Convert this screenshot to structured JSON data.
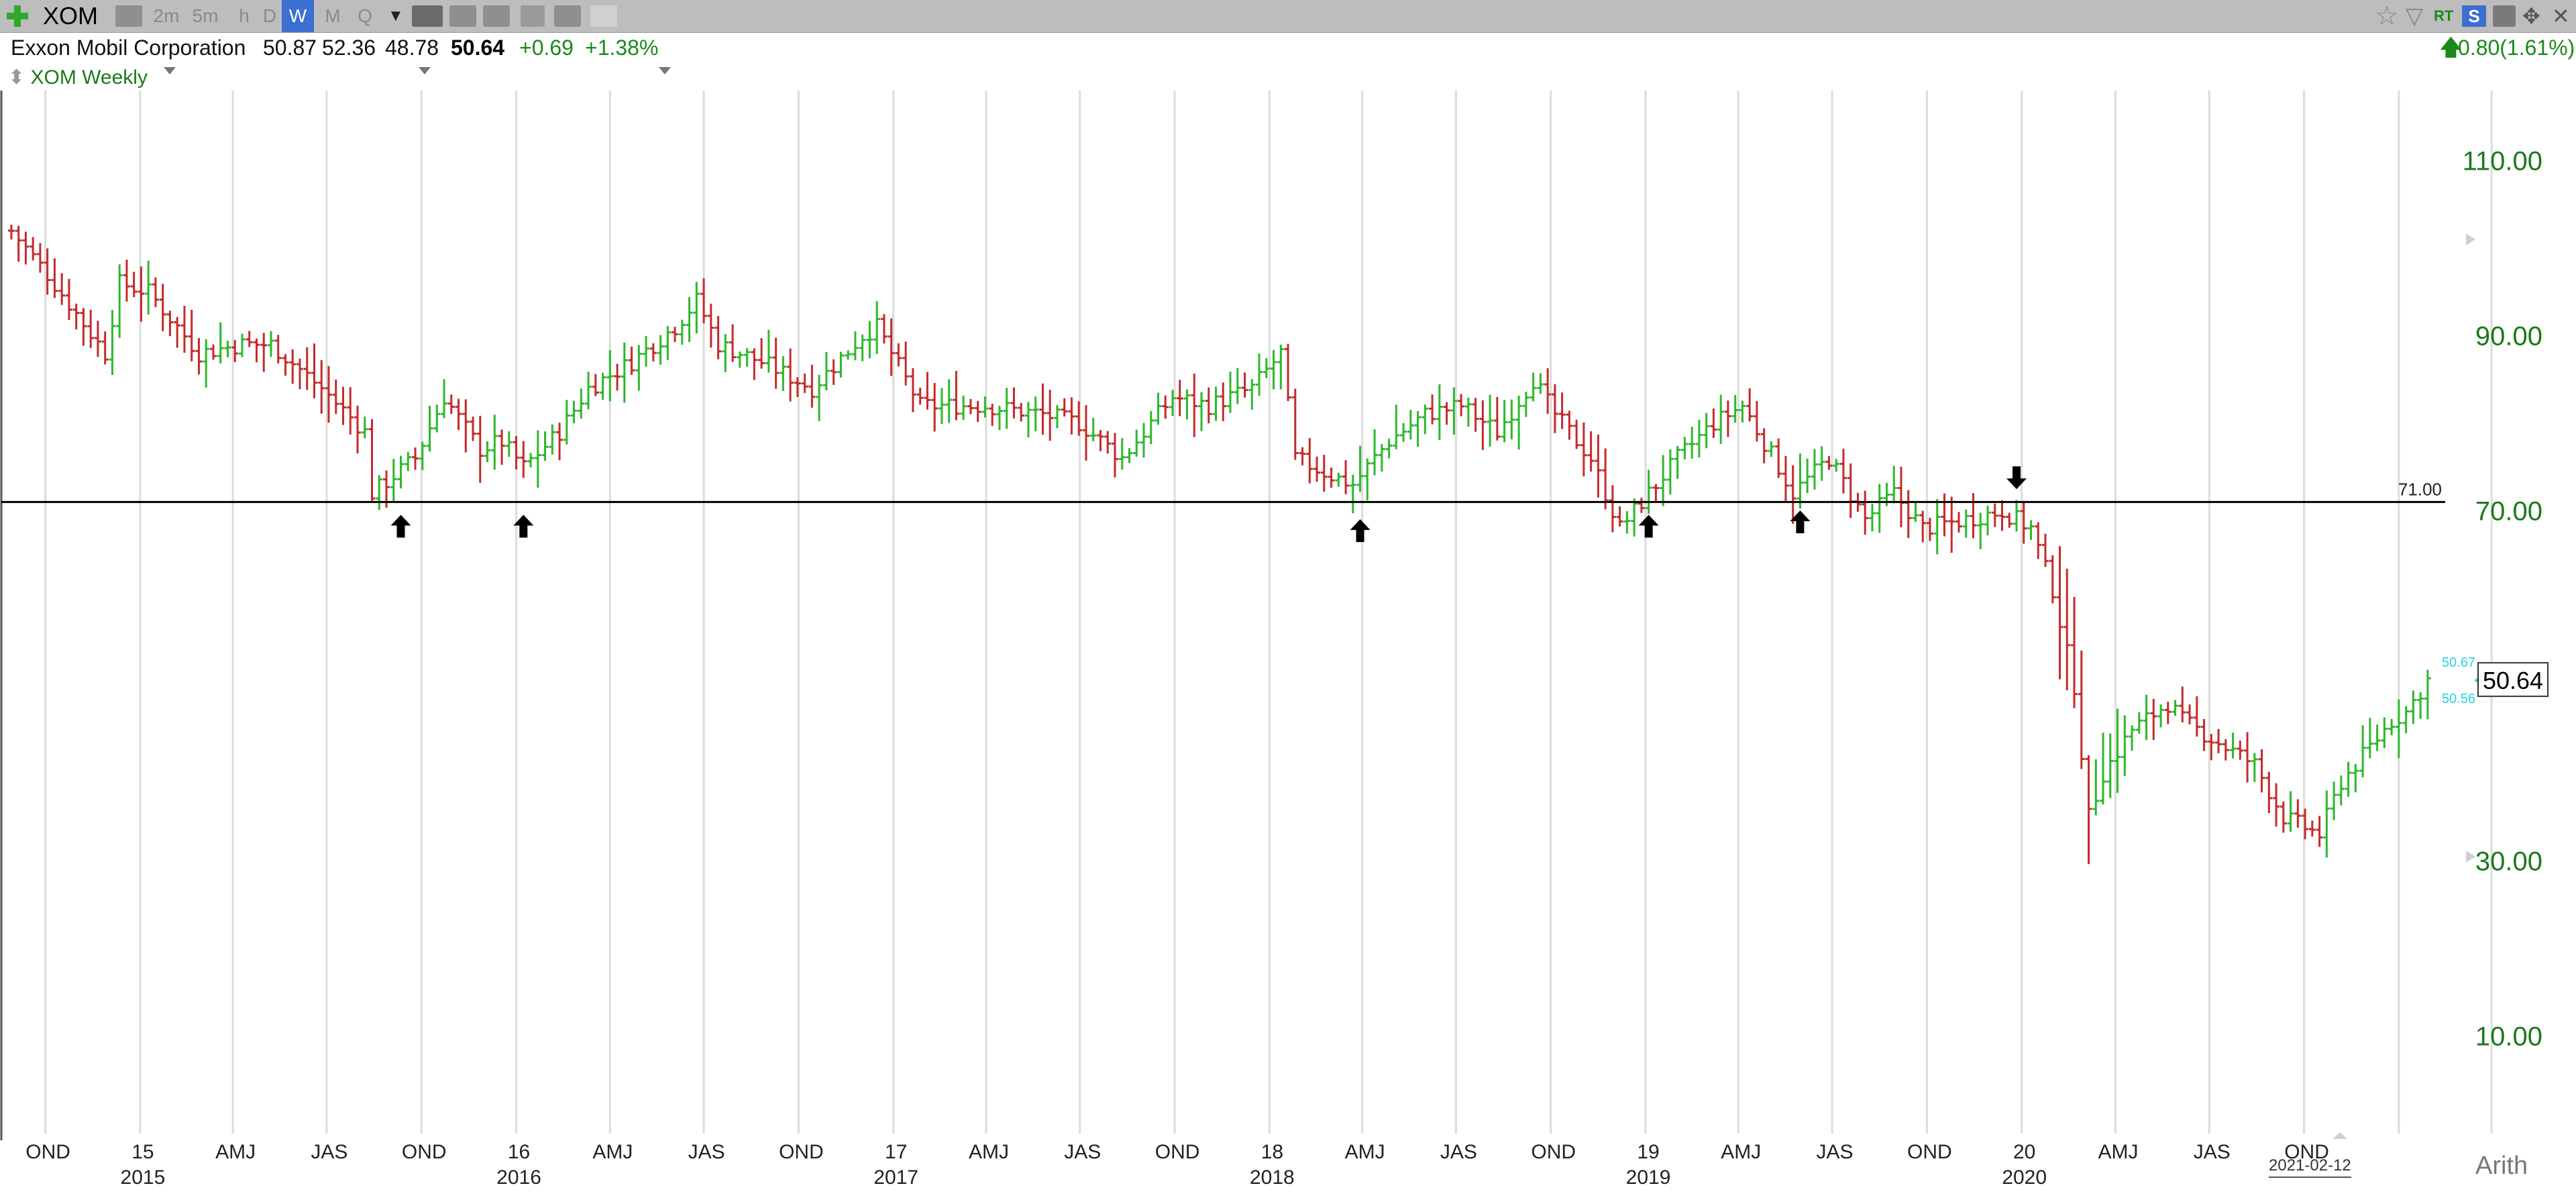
{
  "toolbar": {
    "symbol": "XOM",
    "timeframes": [
      "2m",
      "5m",
      "h",
      "D",
      "W",
      "M",
      "Q"
    ],
    "selected_timeframe": "W",
    "right_icons": [
      "star-icon",
      "filter-icon",
      "rt-icon",
      "s-icon",
      "save-icon",
      "move-icon",
      "close-icon"
    ],
    "rt_label": "RT",
    "s_label": "S"
  },
  "quote": {
    "name": "Exxon Mobil Corporation",
    "open": "50.87",
    "high": "52.36",
    "low": "48.78",
    "last": "50.64",
    "change": "+0.69",
    "change_pct": "+1.38%",
    "after_change": "0.80(1.61%)",
    "up_color": "#1a8a1a",
    "down_color": "#c0392b"
  },
  "chart_label": "XOM Weekly",
  "scale_mode": "Arith",
  "current_date": "2021-02-12",
  "chart_data": {
    "type": "bar",
    "subtype": "ohlc-weekly",
    "ylim": [
      0,
      118
    ],
    "y_ticks": [
      10,
      30,
      50,
      70,
      90,
      110
    ],
    "y_tick_labels": [
      "10.00",
      "30.00",
      "",
      "70.00",
      "90.00",
      "110.00"
    ],
    "last_price": "50.64",
    "bid_ask": [
      "50.67",
      "50.56"
    ],
    "horizontal_line": {
      "value": 71.0,
      "label": "71.00"
    },
    "grid": true,
    "x_axis": {
      "start": "2014-09",
      "end": "2021-03",
      "quarter_labels": [
        {
          "date": "2014-10-15",
          "label": "OND"
        },
        {
          "date": "2015-01-15",
          "label": "15"
        },
        {
          "date": "2015-04-15",
          "label": "AMJ"
        },
        {
          "date": "2015-07-15",
          "label": "JAS"
        },
        {
          "date": "2015-10-15",
          "label": "OND"
        },
        {
          "date": "2016-01-15",
          "label": "16"
        },
        {
          "date": "2016-04-15",
          "label": "AMJ"
        },
        {
          "date": "2016-07-15",
          "label": "JAS"
        },
        {
          "date": "2016-10-15",
          "label": "OND"
        },
        {
          "date": "2017-01-15",
          "label": "17"
        },
        {
          "date": "2017-04-15",
          "label": "AMJ"
        },
        {
          "date": "2017-07-15",
          "label": "JAS"
        },
        {
          "date": "2017-10-15",
          "label": "OND"
        },
        {
          "date": "2018-01-15",
          "label": "18"
        },
        {
          "date": "2018-04-15",
          "label": "AMJ"
        },
        {
          "date": "2018-07-15",
          "label": "JAS"
        },
        {
          "date": "2018-10-15",
          "label": "OND"
        },
        {
          "date": "2019-01-15",
          "label": "19"
        },
        {
          "date": "2019-04-15",
          "label": "AMJ"
        },
        {
          "date": "2019-07-15",
          "label": "JAS"
        },
        {
          "date": "2019-10-15",
          "label": "OND"
        },
        {
          "date": "2020-01-15",
          "label": "20"
        },
        {
          "date": "2020-04-15",
          "label": "AMJ"
        },
        {
          "date": "2020-07-15",
          "label": "JAS"
        },
        {
          "date": "2020-10-15",
          "label": "OND"
        }
      ],
      "year_labels": [
        {
          "date": "2015-01-15",
          "label": "2015"
        },
        {
          "date": "2016-01-15",
          "label": "2016"
        },
        {
          "date": "2017-01-15",
          "label": "2017"
        },
        {
          "date": "2018-01-15",
          "label": "2018"
        },
        {
          "date": "2019-01-15",
          "label": "2019"
        },
        {
          "date": "2020-01-15",
          "label": "2020"
        }
      ]
    },
    "price_path": [
      [
        "2014-09-12",
        102
      ],
      [
        "2014-10-17",
        97
      ],
      [
        "2014-12-12",
        88
      ],
      [
        "2014-12-26",
        96
      ],
      [
        "2015-01-23",
        95
      ],
      [
        "2015-03-13",
        88
      ],
      [
        "2015-04-24",
        89
      ],
      [
        "2015-05-22",
        89
      ],
      [
        "2015-07-10",
        84
      ],
      [
        "2015-08-21",
        79
      ],
      [
        "2015-08-28",
        72
      ],
      [
        "2015-09-18",
        74
      ],
      [
        "2015-10-09",
        76
      ],
      [
        "2015-11-06",
        83
      ],
      [
        "2015-12-11",
        77
      ],
      [
        "2015-12-31",
        78
      ],
      [
        "2016-01-22",
        75
      ],
      [
        "2016-02-26",
        79
      ],
      [
        "2016-03-25",
        84
      ],
      [
        "2016-05-06",
        87
      ],
      [
        "2016-06-17",
        91
      ],
      [
        "2016-07-08",
        94
      ],
      [
        "2016-07-29",
        89
      ],
      [
        "2016-09-09",
        87
      ],
      [
        "2016-10-28",
        84
      ],
      [
        "2016-12-16",
        90
      ],
      [
        "2016-12-30",
        91
      ],
      [
        "2017-02-10",
        82
      ],
      [
        "2017-04-14",
        82
      ],
      [
        "2017-06-09",
        81
      ],
      [
        "2017-07-14",
        80
      ],
      [
        "2017-08-25",
        76
      ],
      [
        "2017-10-13",
        83
      ],
      [
        "2017-11-17",
        82
      ],
      [
        "2017-12-29",
        84
      ],
      [
        "2018-01-26",
        88
      ],
      [
        "2018-02-09",
        76
      ],
      [
        "2018-03-16",
        74
      ],
      [
        "2018-04-06",
        73
      ],
      [
        "2018-05-11",
        78
      ],
      [
        "2018-06-15",
        81
      ],
      [
        "2018-07-20",
        82
      ],
      [
        "2018-08-24",
        79
      ],
      [
        "2018-09-28",
        85
      ],
      [
        "2018-10-19",
        81
      ],
      [
        "2018-11-23",
        76
      ],
      [
        "2018-12-21",
        68
      ],
      [
        "2019-01-11",
        71
      ],
      [
        "2019-02-15",
        76
      ],
      [
        "2019-03-22",
        80
      ],
      [
        "2019-04-19",
        82
      ],
      [
        "2019-05-24",
        75
      ],
      [
        "2019-06-07",
        72
      ],
      [
        "2019-07-12",
        76
      ],
      [
        "2019-08-16",
        69
      ],
      [
        "2019-09-13",
        72
      ],
      [
        "2019-10-11",
        68
      ],
      [
        "2019-11-22",
        69
      ],
      [
        "2019-12-27",
        70
      ],
      [
        "2020-01-24",
        68
      ],
      [
        "2020-02-14",
        61
      ],
      [
        "2020-03-06",
        50
      ],
      [
        "2020-03-20",
        35
      ],
      [
        "2020-04-03",
        40
      ],
      [
        "2020-05-01",
        45
      ],
      [
        "2020-06-05",
        48
      ],
      [
        "2020-06-19",
        46
      ],
      [
        "2020-07-17",
        44
      ],
      [
        "2020-08-28",
        41
      ],
      [
        "2020-09-25",
        35
      ],
      [
        "2020-10-30",
        33
      ],
      [
        "2020-11-20",
        39
      ],
      [
        "2020-12-18",
        43
      ],
      [
        "2021-01-08",
        46
      ],
      [
        "2021-01-22",
        47
      ],
      [
        "2021-02-12",
        50.64
      ]
    ],
    "arrows": [
      {
        "date": "2015-09-25",
        "direction": "up",
        "value": 68
      },
      {
        "date": "2016-01-22",
        "direction": "up",
        "value": 68
      },
      {
        "date": "2018-04-13",
        "direction": "up",
        "value": 67.5
      },
      {
        "date": "2019-01-18",
        "direction": "up",
        "value": 68
      },
      {
        "date": "2019-06-14",
        "direction": "up",
        "value": 68.5
      },
      {
        "date": "2020-01-10",
        "direction": "down",
        "value": 74
      }
    ]
  }
}
